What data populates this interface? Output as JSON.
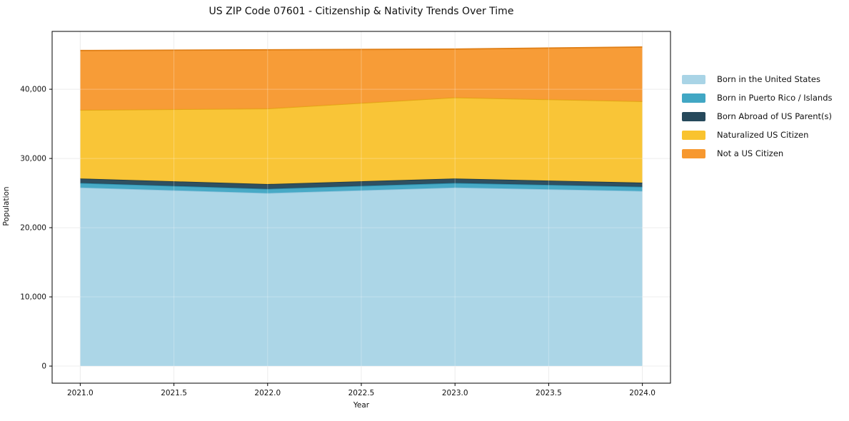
{
  "chart_data": {
    "type": "area",
    "stacked": true,
    "title": "US ZIP Code 07601 - Citizenship & Nativity Trends Over Time",
    "xlabel": "Year",
    "ylabel": "Population",
    "x": [
      2021,
      2022,
      2023,
      2024
    ],
    "series": [
      {
        "name": "Born in the United States",
        "color": "#A9D4E6",
        "stroke": "#8FC4DC",
        "values": [
          25800,
          25000,
          25800,
          25300
        ]
      },
      {
        "name": "Born in Puerto Rico / Islands",
        "color": "#41A7C4",
        "stroke": "#2D93B2",
        "values": [
          650,
          600,
          650,
          600
        ]
      },
      {
        "name": "Born Abroad of US Parent(s)",
        "color": "#26495B",
        "stroke": "#1B3A4A",
        "values": [
          650,
          700,
          650,
          600
        ]
      },
      {
        "name": "Naturalized US Citizen",
        "color": "#F9C32F",
        "stroke": "#E2A917",
        "values": [
          9900,
          10900,
          11700,
          11750
        ]
      },
      {
        "name": "Not a US Citizen",
        "color": "#F7982F",
        "stroke": "#E07F16",
        "values": [
          8600,
          8500,
          7000,
          7850
        ]
      }
    ],
    "totals": [
      45600,
      45700,
      45800,
      46100
    ],
    "xlim": [
      2020.85,
      2024.15
    ],
    "ylim": [
      -2470,
      48360
    ],
    "xticks": {
      "values": [
        2021.0,
        2021.5,
        2022.0,
        2022.5,
        2023.0,
        2023.5,
        2024.0
      ],
      "labels": [
        "2021.0",
        "2021.5",
        "2022.0",
        "2022.5",
        "2023.0",
        "2023.5",
        "2024.0"
      ]
    },
    "yticks": {
      "values": [
        0,
        10000,
        20000,
        30000,
        40000
      ],
      "labels": [
        "0",
        "10,000",
        "20,000",
        "30,000",
        "40,000"
      ]
    },
    "grid": true,
    "grid_color": "#e7e7e7",
    "frame_color": "#000000",
    "legend_position": "upper right outside"
  }
}
